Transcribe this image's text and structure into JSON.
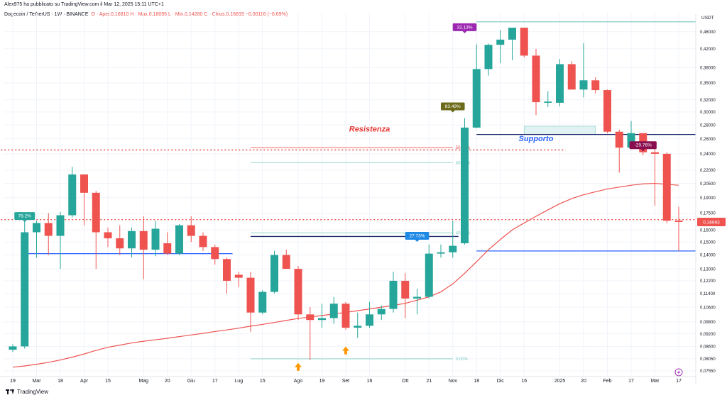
{
  "header": {
    "published_by": "Alex975 ha pubblicato su TradingView.com il Mar 12, 2025 15:11 UTC+1",
    "symbol_line": "Dogecoin / TetherUS · 1W · BINANCE",
    "ohlc_line": "O · Aper.0,16810  H · Max.0,18095  L · Min.0,14280  C · Chius.0,16693  −0,00116 (−0,69%)"
  },
  "footer": {
    "brand": "TradingView"
  },
  "colors": {
    "up": "#26a69a",
    "down": "#ef5350",
    "ma": "#ef5350",
    "level_blue": "#2962ff",
    "level_navy": "#1e2a6e",
    "resistance": "#e53935",
    "fib": "#80cbc4",
    "price_tag": "#ef5350",
    "arrow": "#ff9800"
  },
  "chart_data": {
    "type": "candlestick",
    "scale": "log",
    "currency": "USDT",
    "y_ticks": [
      0.46,
      0.42,
      0.38,
      0.35,
      0.32,
      0.3,
      0.28,
      0.26,
      0.24,
      0.22,
      0.205,
      0.19,
      0.175,
      0.16,
      0.15,
      0.14,
      0.13,
      0.122,
      0.114,
      0.106,
      0.098,
      0.092,
      0.086,
      0.0805,
      0.0755
    ],
    "y_tick_labels": [
      "0,46000",
      "0,42000",
      "0,38000",
      "0,35000",
      "0,32000",
      "0,30000",
      "0,28000",
      "0,26000",
      "0,24000",
      "0,22000",
      "0,20500",
      "0,19000",
      "0,17500",
      "0,16000",
      "0,15000",
      "0,14000",
      "0,13000",
      "0,12200",
      "0,11400",
      "0,10600",
      "0,09800",
      "0,09200",
      "0,08600",
      "0,08050",
      "0,07550"
    ],
    "ylim": [
      0.0735,
      0.49
    ],
    "x_tick_labels": [
      {
        "label": "19",
        "i": 0
      },
      {
        "label": "Mar",
        "i": 2
      },
      {
        "label": "18",
        "i": 4
      },
      {
        "label": "Apr",
        "i": 6
      },
      {
        "label": "15",
        "i": 8
      },
      {
        "label": "Mag",
        "i": 11
      },
      {
        "label": "20",
        "i": 13
      },
      {
        "label": "Giu",
        "i": 15
      },
      {
        "label": "17",
        "i": 17
      },
      {
        "label": "Lug",
        "i": 19
      },
      {
        "label": "15",
        "i": 21
      },
      {
        "label": "Ago",
        "i": 24
      },
      {
        "label": "19",
        "i": 26
      },
      {
        "label": "Set",
        "i": 28
      },
      {
        "label": "16",
        "i": 30
      },
      {
        "label": "Ott",
        "i": 33
      },
      {
        "label": "21",
        "i": 35
      },
      {
        "label": "Nov",
        "i": 37
      },
      {
        "label": "18",
        "i": 39
      },
      {
        "label": "Dic",
        "i": 41
      },
      {
        "label": "16",
        "i": 43
      },
      {
        "label": "2025",
        "i": 46
      },
      {
        "label": "20",
        "i": 48
      },
      {
        "label": "Feb",
        "i": 50
      },
      {
        "label": "17",
        "i": 52
      },
      {
        "label": "Mar",
        "i": 54
      },
      {
        "label": "17",
        "i": 56
      }
    ],
    "candles": [
      {
        "o": 0.0845,
        "h": 0.087,
        "l": 0.0835,
        "c": 0.086
      },
      {
        "o": 0.086,
        "h": 0.172,
        "l": 0.085,
        "c": 0.158
      },
      {
        "o": 0.158,
        "h": 0.168,
        "l": 0.138,
        "c": 0.166
      },
      {
        "o": 0.166,
        "h": 0.175,
        "l": 0.14,
        "c": 0.155
      },
      {
        "o": 0.155,
        "h": 0.176,
        "l": 0.13,
        "c": 0.173
      },
      {
        "o": 0.173,
        "h": 0.224,
        "l": 0.171,
        "c": 0.215
      },
      {
        "o": 0.215,
        "h": 0.215,
        "l": 0.164,
        "c": 0.195
      },
      {
        "o": 0.195,
        "h": 0.197,
        "l": 0.13,
        "c": 0.158
      },
      {
        "o": 0.158,
        "h": 0.162,
        "l": 0.146,
        "c": 0.153
      },
      {
        "o": 0.153,
        "h": 0.164,
        "l": 0.14,
        "c": 0.145
      },
      {
        "o": 0.145,
        "h": 0.162,
        "l": 0.138,
        "c": 0.159
      },
      {
        "o": 0.159,
        "h": 0.172,
        "l": 0.123,
        "c": 0.144
      },
      {
        "o": 0.144,
        "h": 0.168,
        "l": 0.139,
        "c": 0.161
      },
      {
        "o": 0.149,
        "h": 0.158,
        "l": 0.14,
        "c": 0.141
      },
      {
        "o": 0.141,
        "h": 0.165,
        "l": 0.14,
        "c": 0.164
      },
      {
        "o": 0.164,
        "h": 0.172,
        "l": 0.15,
        "c": 0.155
      },
      {
        "o": 0.155,
        "h": 0.158,
        "l": 0.143,
        "c": 0.146
      },
      {
        "o": 0.146,
        "h": 0.148,
        "l": 0.133,
        "c": 0.137
      },
      {
        "o": 0.137,
        "h": 0.138,
        "l": 0.114,
        "c": 0.122
      },
      {
        "o": 0.126,
        "h": 0.128,
        "l": 0.118,
        "c": 0.124
      },
      {
        "o": 0.124,
        "h": 0.128,
        "l": 0.093,
        "c": 0.103
      },
      {
        "o": 0.103,
        "h": 0.116,
        "l": 0.102,
        "c": 0.115
      },
      {
        "o": 0.115,
        "h": 0.143,
        "l": 0.114,
        "c": 0.14
      },
      {
        "o": 0.14,
        "h": 0.144,
        "l": 0.13,
        "c": 0.13
      },
      {
        "o": 0.13,
        "h": 0.132,
        "l": 0.099,
        "c": 0.102
      },
      {
        "o": 0.102,
        "h": 0.106,
        "l": 0.08,
        "c": 0.099
      },
      {
        "o": 0.099,
        "h": 0.108,
        "l": 0.095,
        "c": 0.1
      },
      {
        "o": 0.1,
        "h": 0.112,
        "l": 0.097,
        "c": 0.108
      },
      {
        "o": 0.108,
        "h": 0.109,
        "l": 0.094,
        "c": 0.095
      },
      {
        "o": 0.095,
        "h": 0.103,
        "l": 0.09,
        "c": 0.096
      },
      {
        "o": 0.096,
        "h": 0.109,
        "l": 0.095,
        "c": 0.102
      },
      {
        "o": 0.102,
        "h": 0.107,
        "l": 0.099,
        "c": 0.105
      },
      {
        "o": 0.105,
        "h": 0.128,
        "l": 0.103,
        "c": 0.122
      },
      {
        "o": 0.122,
        "h": 0.127,
        "l": 0.1,
        "c": 0.111
      },
      {
        "o": 0.111,
        "h": 0.117,
        "l": 0.102,
        "c": 0.112
      },
      {
        "o": 0.112,
        "h": 0.148,
        "l": 0.111,
        "c": 0.141
      },
      {
        "o": 0.141,
        "h": 0.148,
        "l": 0.138,
        "c": 0.142
      },
      {
        "o": 0.142,
        "h": 0.168,
        "l": 0.138,
        "c": 0.147
      },
      {
        "o": 0.149,
        "h": 0.29,
        "l": 0.148,
        "c": 0.276
      },
      {
        "o": 0.276,
        "h": 0.43,
        "l": 0.275,
        "c": 0.377
      },
      {
        "o": 0.377,
        "h": 0.432,
        "l": 0.364,
        "c": 0.429
      },
      {
        "o": 0.429,
        "h": 0.464,
        "l": 0.389,
        "c": 0.441
      },
      {
        "o": 0.441,
        "h": 0.47,
        "l": 0.395,
        "c": 0.47
      },
      {
        "o": 0.47,
        "h": 0.47,
        "l": 0.401,
        "c": 0.405
      },
      {
        "o": 0.405,
        "h": 0.42,
        "l": 0.295,
        "c": 0.316
      },
      {
        "o": 0.315,
        "h": 0.335,
        "l": 0.308,
        "c": 0.317
      },
      {
        "o": 0.315,
        "h": 0.398,
        "l": 0.309,
        "c": 0.387
      },
      {
        "o": 0.387,
        "h": 0.393,
        "l": 0.338,
        "c": 0.338
      },
      {
        "o": 0.338,
        "h": 0.433,
        "l": 0.324,
        "c": 0.355
      },
      {
        "o": 0.355,
        "h": 0.361,
        "l": 0.331,
        "c": 0.337
      },
      {
        "o": 0.337,
        "h": 0.338,
        "l": 0.268,
        "c": 0.27
      },
      {
        "o": 0.27,
        "h": 0.273,
        "l": 0.217,
        "c": 0.248
      },
      {
        "o": 0.248,
        "h": 0.286,
        "l": 0.246,
        "c": 0.268
      },
      {
        "o": 0.268,
        "h": 0.268,
        "l": 0.238,
        "c": 0.242
      },
      {
        "o": 0.242,
        "h": 0.249,
        "l": 0.182,
        "c": 0.24
      },
      {
        "o": 0.24,
        "h": 0.242,
        "l": 0.166,
        "c": 0.168
      },
      {
        "o": 0.1681,
        "h": 0.181,
        "l": 0.1428,
        "c": 0.1669
      }
    ],
    "moving_average": {
      "start_i": 0,
      "values": [
        0.077,
        0.0775,
        0.0782,
        0.079,
        0.08,
        0.0812,
        0.0826,
        0.0842,
        0.0856,
        0.0866,
        0.0876,
        0.0884,
        0.0891,
        0.0898,
        0.0906,
        0.0914,
        0.0922,
        0.0931,
        0.0939,
        0.0948,
        0.0958,
        0.0967,
        0.0977,
        0.0988,
        0.0998,
        0.1006,
        0.1014,
        0.1022,
        0.1031,
        0.104,
        0.105,
        0.106,
        0.107,
        0.1082,
        0.11,
        0.112,
        0.115,
        0.12,
        0.127,
        0.135,
        0.144,
        0.152,
        0.16,
        0.166,
        0.172,
        0.178,
        0.184,
        0.189,
        0.193,
        0.196,
        0.199,
        0.201,
        0.203,
        0.2045,
        0.205,
        0.204,
        0.203
      ]
    },
    "levels": [
      {
        "name": "resistance",
        "price": 0.245,
        "from_i": -1,
        "to_i": 46,
        "style": "dotted",
        "color_key": "resistance"
      },
      {
        "name": "support",
        "price": 0.266,
        "from_i": 39,
        "to_i": 57,
        "style": "solid",
        "color_key": "level_navy"
      },
      {
        "name": "left-support",
        "price": 0.141,
        "from_i": 1,
        "to_i": 18,
        "style": "solid",
        "color_key": "level_blue"
      },
      {
        "name": "low-support",
        "price": 0.143,
        "from_i": 39,
        "to_i": 57,
        "style": "solid",
        "color_key": "level_blue"
      },
      {
        "name": "mid-line",
        "price": 0.1545,
        "from_i": 20,
        "to_i": 37,
        "style": "solid",
        "color_key": "level_navy"
      },
      {
        "name": "pink-dotted",
        "price": 0.169,
        "from_i": -1,
        "to_i": 57,
        "style": "dotted",
        "color_key": "price_tag"
      },
      {
        "name": "top-line",
        "price": 0.485,
        "from_i": 39,
        "to_i": 57,
        "style": "solid",
        "color_key": "fib"
      }
    ],
    "fib_lines": [
      {
        "label": "50,00%",
        "price": 0.248,
        "from_i": 20,
        "to_i": 37,
        "color": "#ef5350"
      },
      {
        "label": "40,00%",
        "price": 0.229,
        "from_i": 20,
        "to_i": 37,
        "color": "#80cbc4"
      },
      {
        "label": "40,00%",
        "price": 0.1575,
        "from_i": 20,
        "to_i": 37,
        "color": "#80cbc4"
      },
      {
        "label": "0,00%",
        "price": 0.0805,
        "from_i": 20,
        "to_i": 37,
        "color": "#80cbc4"
      }
    ],
    "support_box": {
      "from_i": 43,
      "to_i": 49,
      "top": 0.278,
      "bottom": 0.266
    },
    "labels": [
      {
        "text": "78.2%",
        "i": 1,
        "price": 0.17,
        "color": "#26a69a"
      },
      {
        "text": "27.73%",
        "i": 34,
        "price": 0.153,
        "color": "#1e88e5"
      },
      {
        "text": "83.49%",
        "i": 37,
        "price": 0.305,
        "color": "#6d6a1a"
      },
      {
        "text": "32.13%",
        "i": 38,
        "price": 0.465,
        "color": "#9c27b0"
      },
      {
        "text": "-29.76%",
        "i": 53,
        "price": 0.248,
        "color": "#880e4f"
      }
    ],
    "annotations": [
      {
        "text": "Resistenza",
        "i": 30,
        "price": 0.27,
        "color": "#e53935"
      },
      {
        "text": "Supporto",
        "i": 44,
        "price": 0.257,
        "color": "#2962ff"
      }
    ],
    "arrows": [
      {
        "i": 24,
        "price": 0.077
      },
      {
        "i": 28,
        "price": 0.084
      }
    ],
    "last_price": {
      "price": 0.1669,
      "label": "0,16693"
    }
  }
}
